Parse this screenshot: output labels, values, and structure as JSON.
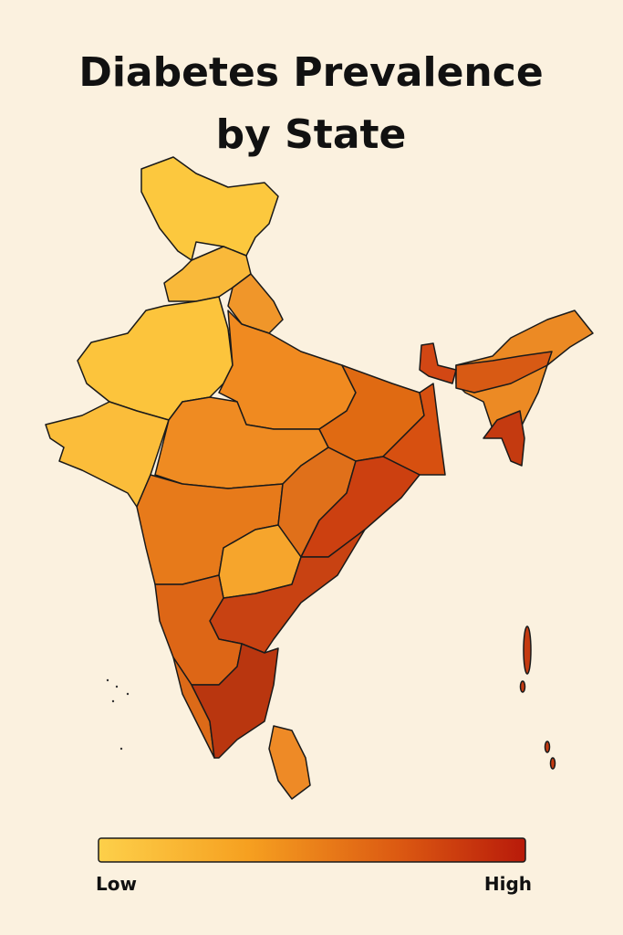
{
  "title": "Diabetes Prevalence by State",
  "legend": {
    "low": "Low",
    "high": "High"
  }
}
